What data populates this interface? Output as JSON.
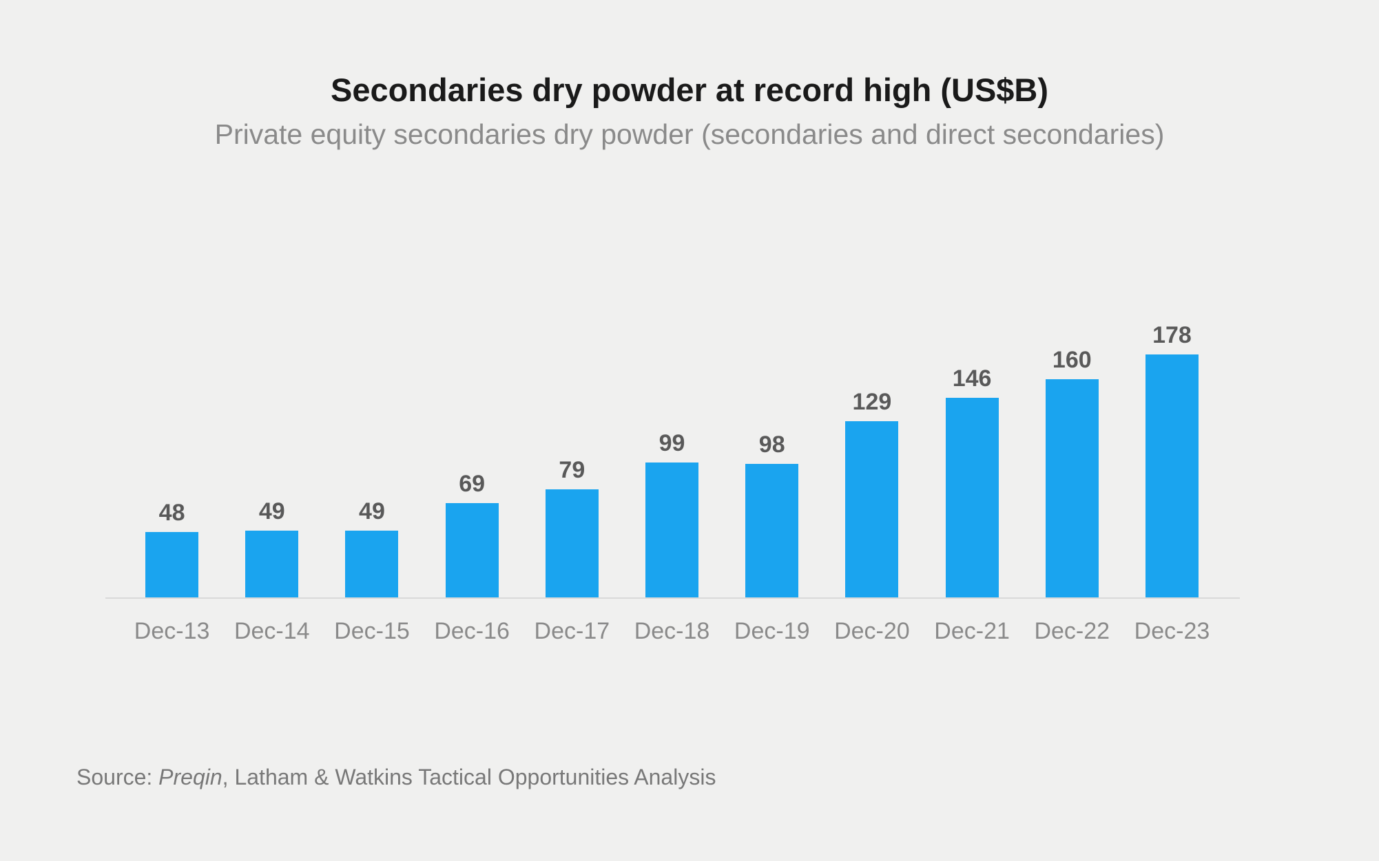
{
  "page": {
    "background": "#F0F0EF"
  },
  "header": {
    "title": "Secondaries dry powder at record high (US$B)",
    "subtitle": "Private equity secondaries dry powder (secondaries and direct secondaries)"
  },
  "chart_data": {
    "type": "bar",
    "categories": [
      "Dec-13",
      "Dec-14",
      "Dec-15",
      "Dec-16",
      "Dec-17",
      "Dec-18",
      "Dec-19",
      "Dec-20",
      "Dec-21",
      "Dec-22",
      "Dec-23"
    ],
    "values": [
      48,
      49,
      49,
      69,
      79,
      99,
      98,
      129,
      146,
      160,
      178
    ],
    "title": "Secondaries dry powder at record high (US$B)",
    "subtitle": "Private equity secondaries dry powder (secondaries and direct secondaries)",
    "xlabel": "",
    "ylabel": "",
    "ylim": [
      0,
      178
    ],
    "bar_color": "#1AA4EF",
    "value_label_color": "#595959",
    "axis_label_color": "#8A8A8A",
    "baseline_color": "#D9D9D9",
    "gridlines": false,
    "legend": "none",
    "data_labels": true
  },
  "footer": {
    "source_prefix": "Source: ",
    "source_italic": "Preqin",
    "source_suffix": ", Latham & Watkins Tactical Opportunities Analysis"
  }
}
